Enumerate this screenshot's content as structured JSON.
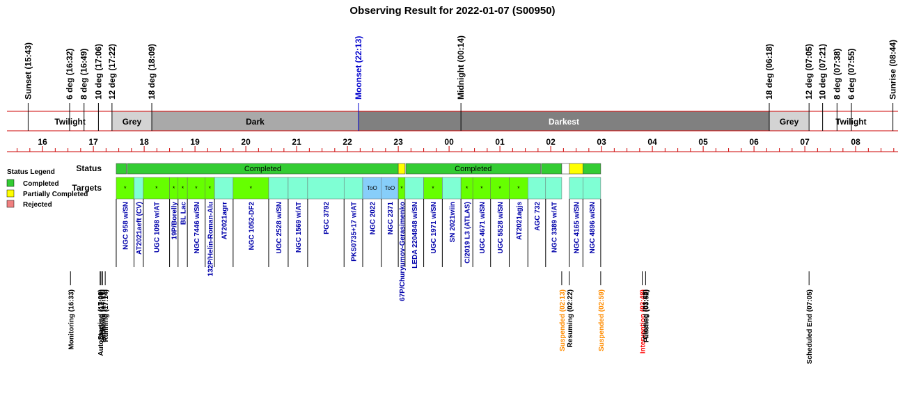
{
  "chart_data": {
    "type": "timeline",
    "title": "Observing Result for 2022-01-07 (S00950)",
    "time_axis": {
      "start": "15:18",
      "end": "08:54",
      "hour_ticks": [
        "16",
        "17",
        "18",
        "19",
        "20",
        "21",
        "22",
        "23",
        "00",
        "01",
        "02",
        "03",
        "04",
        "05",
        "06",
        "07",
        "08"
      ]
    },
    "sky_events": [
      {
        "label": "Sunset (15:43)",
        "time": "15:43",
        "color": "#000000"
      },
      {
        "label": "6 deg (16:32)",
        "time": "16:32",
        "color": "#000000"
      },
      {
        "label": "8 deg (16:49)",
        "time": "16:49",
        "color": "#000000"
      },
      {
        "label": "10 deg (17:06)",
        "time": "17:06",
        "color": "#000000"
      },
      {
        "label": "12 deg (17:22)",
        "time": "17:22",
        "color": "#000000"
      },
      {
        "label": "18 deg (18:09)",
        "time": "18:09",
        "color": "#000000"
      },
      {
        "label": "Moonset (22:13)",
        "time": "22:13",
        "color": "#0000cc"
      },
      {
        "label": "Midnight (00:14)",
        "time": "00:14",
        "color": "#000000"
      },
      {
        "label": "18 deg (06:18)",
        "time": "06:18",
        "color": "#000000"
      },
      {
        "label": "12 deg (07:05)",
        "time": "07:05",
        "color": "#000000"
      },
      {
        "label": "10 deg (07:21)",
        "time": "07:21",
        "color": "#000000"
      },
      {
        "label": "8 deg (07:38)",
        "time": "07:38",
        "color": "#000000"
      },
      {
        "label": "6 deg (07:55)",
        "time": "07:55",
        "color": "#000000"
      },
      {
        "label": "Sunrise (08:44)",
        "time": "08:44",
        "color": "#000000"
      }
    ],
    "sky_phases": [
      {
        "label": "Twilight",
        "start": "15:43",
        "end": "17:22",
        "color": "#ffffff"
      },
      {
        "label": "Grey",
        "start": "17:22",
        "end": "18:09",
        "color": "#d3d3d3"
      },
      {
        "label": "Dark",
        "start": "18:09",
        "end": "22:13",
        "color": "#a9a9a9"
      },
      {
        "label": "Darkest",
        "start": "22:13",
        "end": "06:18",
        "color": "#808080"
      },
      {
        "label": "Grey",
        "start": "06:18",
        "end": "07:05",
        "color": "#d3d3d3"
      },
      {
        "label": "Twilight",
        "start": "07:05",
        "end": "08:44",
        "color": "#ffffff"
      }
    ],
    "legend": {
      "title": "Status Legend",
      "items": [
        {
          "label": "Completed",
          "color": "#33cc33"
        },
        {
          "label": "Partially Completed",
          "color": "#ffff00"
        },
        {
          "label": "Rejected",
          "color": "#f08080"
        }
      ]
    },
    "row_labels": {
      "status": "Status",
      "targets": "Targets"
    },
    "status_blocks": [
      {
        "start": "17:27",
        "end": "17:39",
        "color": "#33cc33",
        "label": ""
      },
      {
        "start": "17:40",
        "end": "23:00",
        "color": "#33cc33",
        "label": "Completed"
      },
      {
        "start": "23:00",
        "end": "23:08",
        "color": "#ffff00",
        "label": ""
      },
      {
        "start": "23:09",
        "end": "01:48",
        "color": "#33cc33",
        "label": "Completed"
      },
      {
        "start": "01:49",
        "end": "02:13",
        "color": "#33cc33",
        "label": ""
      },
      {
        "start": "02:13",
        "end": "02:22",
        "color": "#ffffff",
        "label": ""
      },
      {
        "start": "02:22",
        "end": "02:38",
        "color": "#ffff00",
        "label": ""
      },
      {
        "start": "02:38",
        "end": "02:59",
        "color": "#33cc33",
        "label": ""
      }
    ],
    "targets": [
      {
        "name": "NGC 958 w/SN",
        "start": "17:27",
        "end": "17:48",
        "color": "#66ff00",
        "label_color": "#0000aa",
        "mark": "*"
      },
      {
        "name": "AT2021aeft (CV)",
        "start": "17:48",
        "end": "17:59",
        "color": "#7fffd4",
        "label_color": "#0000aa",
        "mark": ""
      },
      {
        "name": "UGC 1098 w/AT",
        "start": "17:59",
        "end": "18:30",
        "color": "#66ff00",
        "label_color": "#0000aa",
        "mark": "*"
      },
      {
        "name": "19P/Borelly",
        "start": "18:30",
        "end": "18:40",
        "color": "#66ff00",
        "label_color": "#0000aa",
        "mark": "*"
      },
      {
        "name": "BL Lac",
        "start": "18:40",
        "end": "18:51",
        "color": "#66ff00",
        "label_color": "#0000aa",
        "mark": "*"
      },
      {
        "name": "NGC 7446 w/SN",
        "start": "18:51",
        "end": "19:12",
        "color": "#66ff00",
        "label_color": "#0000aa",
        "mark": "*"
      },
      {
        "name": "132P/Helin-Roman-Alu",
        "start": "19:12",
        "end": "19:23",
        "color": "#66ff00",
        "label_color": "#0000aa",
        "mark": "*"
      },
      {
        "name": "AT2021agrr",
        "start": "19:23",
        "end": "19:45",
        "color": "#7fffd4",
        "label_color": "#0000aa",
        "mark": ""
      },
      {
        "name": "NGC 1052-DF2",
        "start": "19:45",
        "end": "20:27",
        "color": "#66ff00",
        "label_color": "#0000aa",
        "mark": "*"
      },
      {
        "name": "UGC 2528 w/SN",
        "start": "20:27",
        "end": "20:50",
        "color": "#7fffd4",
        "label_color": "#0000aa",
        "mark": ""
      },
      {
        "name": "NGC 1569 w/AT",
        "start": "20:50",
        "end": "21:13",
        "color": "#7fffd4",
        "label_color": "#0000aa",
        "mark": ""
      },
      {
        "name": "PGC 3792",
        "start": "21:13",
        "end": "21:56",
        "color": "#7fffd4",
        "label_color": "#0000aa",
        "mark": ""
      },
      {
        "name": "PKS0735+17 w/AT",
        "start": "21:56",
        "end": "22:18",
        "color": "#7fffd4",
        "label_color": "#0000aa",
        "mark": ""
      },
      {
        "name": "NGC 2022",
        "start": "22:18",
        "end": "22:40",
        "color": "#87cefa",
        "label_color": "#0000aa",
        "mark": "ToO"
      },
      {
        "name": "NGC 2371",
        "start": "22:40",
        "end": "23:00",
        "color": "#87cefa",
        "label_color": "#0000aa",
        "mark": "ToO"
      },
      {
        "name": "67P/Churyumov-Gerasimenko",
        "start": "23:00",
        "end": "23:08",
        "color": "#66ff00",
        "label_color": "#0000aa",
        "mark": "*"
      },
      {
        "name": "LEDA 2204848 w/SN",
        "start": "23:08",
        "end": "23:30",
        "color": "#7fffd4",
        "label_color": "#0000aa",
        "mark": ""
      },
      {
        "name": "UGC 1971 w/SN",
        "start": "23:30",
        "end": "23:52",
        "color": "#66ff00",
        "label_color": "#0000aa",
        "mark": "*"
      },
      {
        "name": "SN 2021wiin",
        "start": "23:52",
        "end": "00:14",
        "color": "#7fffd4",
        "label_color": "#0000aa",
        "mark": ""
      },
      {
        "name": "C/2019 L3 (ATLAS)",
        "start": "00:14",
        "end": "00:28",
        "color": "#66ff00",
        "label_color": "#0000aa",
        "mark": "*"
      },
      {
        "name": "UGC 4671 w/SN",
        "start": "00:28",
        "end": "00:49",
        "color": "#66ff00",
        "label_color": "#0000aa",
        "mark": "*"
      },
      {
        "name": "UGC 5528 w/SN",
        "start": "00:49",
        "end": "01:11",
        "color": "#66ff00",
        "label_color": "#0000aa",
        "mark": "*"
      },
      {
        "name": "AT2021agjs",
        "start": "01:11",
        "end": "01:33",
        "color": "#66ff00",
        "label_color": "#0000aa",
        "mark": "*"
      },
      {
        "name": "AGC 732",
        "start": "01:33",
        "end": "01:54",
        "color": "#7fffd4",
        "label_color": "#0000aa",
        "mark": ""
      },
      {
        "name": "NGC 3389 w/AT",
        "start": "01:54",
        "end": "02:13",
        "color": "#7fffd4",
        "label_color": "#0000aa",
        "mark": ""
      },
      {
        "name": "NGC 4165 w/SN",
        "start": "02:22",
        "end": "02:38",
        "color": "#7fffd4",
        "label_color": "#0000aa",
        "mark": ""
      },
      {
        "name": "NGC 4896 w/SN",
        "start": "02:38",
        "end": "02:59",
        "color": "#7fffd4",
        "label_color": "#0000aa",
        "mark": ""
      }
    ],
    "system_events": [
      {
        "label": "Monitoring (16:33)",
        "time": "16:33",
        "color": "#000000"
      },
      {
        "label": "AutoStarting (17:08)",
        "time": "17:08",
        "color": "#000000"
      },
      {
        "label": "Created (17:09)",
        "time": "17:09",
        "color": "#000000"
      },
      {
        "label": "Initiating (17:11)",
        "time": "17:11",
        "color": "#000000"
      },
      {
        "label": "Running (17:14)",
        "time": "17:14",
        "color": "#000000"
      },
      {
        "label": "Suspended (02:13)",
        "time": "02:13",
        "color": "#ff8c00"
      },
      {
        "label": "Resuming (02:22)",
        "time": "02:22",
        "color": "#000000"
      },
      {
        "label": "Suspended (02:59)",
        "time": "02:59",
        "color": "#ff8c00"
      },
      {
        "label": "Intervention (03:48)",
        "time": "03:48",
        "color": "#ff0000"
      },
      {
        "label": "Closing (03:48)",
        "time": "03:48",
        "color": "#000000"
      },
      {
        "label": "Finished (03:52)",
        "time": "03:52",
        "color": "#000000"
      },
      {
        "label": "Scheduled End (07:05)",
        "time": "07:05",
        "color": "#000000"
      }
    ]
  }
}
